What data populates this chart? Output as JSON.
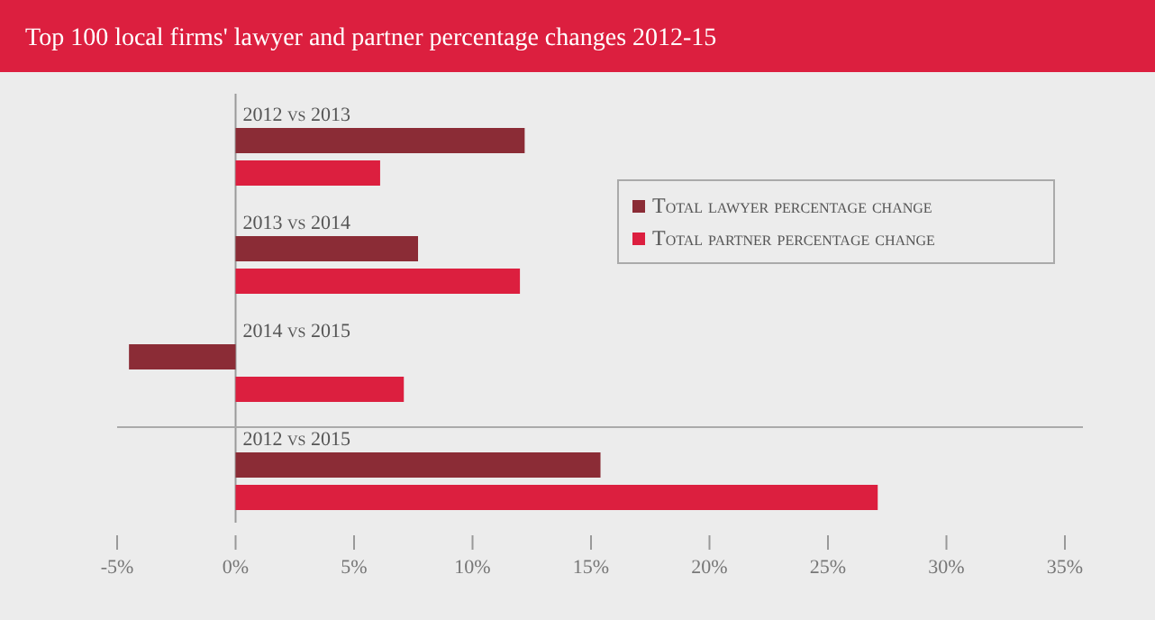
{
  "chart_data": {
    "type": "bar",
    "orientation": "horizontal",
    "title": "Top 100 local firms' lawyer and partner percentage changes 2012-15",
    "categories": [
      "2012 vs 2013",
      "2013 vs 2014",
      "2014 vs 2015",
      "2012 vs 2015"
    ],
    "series": [
      {
        "name": "Total lawyer percentage change",
        "color": "#8b2c36",
        "values": [
          12.2,
          7.7,
          -4.5,
          15.4
        ]
      },
      {
        "name": "Total partner percentage change",
        "color": "#dc1f3f",
        "values": [
          6.1,
          12.0,
          7.1,
          27.1
        ]
      }
    ],
    "xlim": [
      -5,
      35
    ],
    "xticks": [
      {
        "value": -5,
        "label": "-5%"
      },
      {
        "value": 0,
        "label": "0%"
      },
      {
        "value": 5,
        "label": "5%"
      },
      {
        "value": 10,
        "label": "10%"
      },
      {
        "value": 15,
        "label": "15%"
      },
      {
        "value": 20,
        "label": "20%"
      },
      {
        "value": 25,
        "label": "25%"
      },
      {
        "value": 30,
        "label": "30%"
      },
      {
        "value": 35,
        "label": "35%"
      }
    ],
    "legend": "top right",
    "grid": false
  }
}
